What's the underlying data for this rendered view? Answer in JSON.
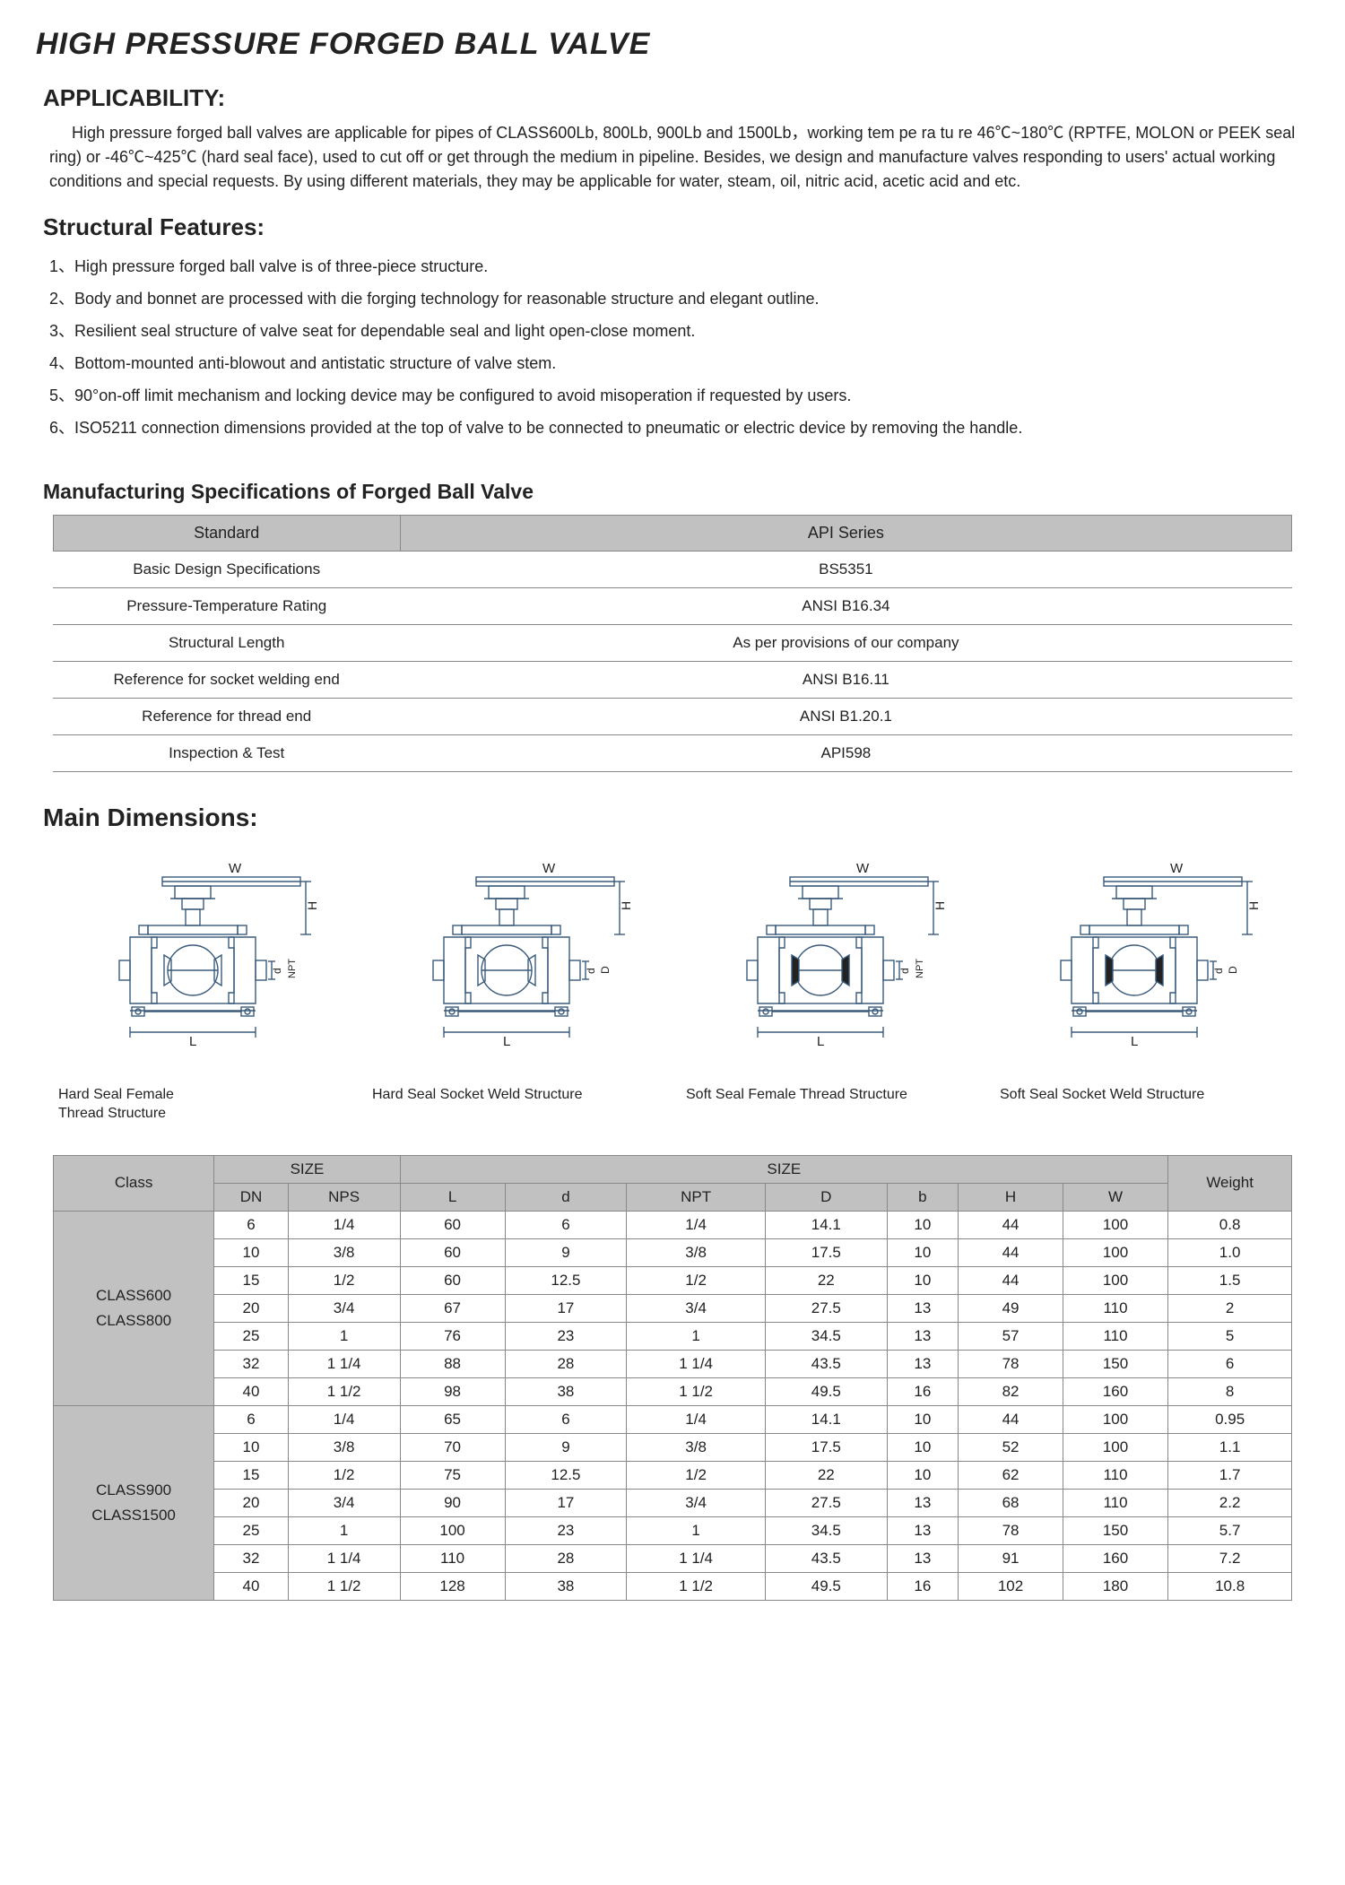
{
  "page_title": "HIGH PRESSURE FORGED BALL VALVE",
  "applicability": {
    "heading": "APPLICABILITY:",
    "text": "High pressure forged ball valves are applicable for pipes of CLASS600Lb, 800Lb, 900Lb and 1500Lb，working tem pe ra tu re 46℃~180℃ (RPTFE, MOLON or PEEK seal ring) or -46℃~425℃ (hard seal face), used to cut off or get through the medium in pipeline. Besides, we design and manufacture valves responding to users' actual working conditions and special requests. By using different materials, they may be applicable for water, steam, oil, nitric acid, acetic acid and etc."
  },
  "features": {
    "heading": "Structural Features:",
    "items": [
      "1、High pressure forged ball valve is of three-piece structure.",
      "2、Body and bonnet are processed with die forging technology for reasonable structure and elegant outline.",
      "3、Resilient seal structure of valve seat for dependable seal and light open-close moment.",
      "4、Bottom-mounted anti-blowout and antistatic structure of valve stem.",
      "5、90°on-off limit mechanism and locking device may be configured to avoid misoperation if requested by users.",
      "6、ISO5211 connection dimensions provided at the top of valve to be connected to pneumatic or electric device by removing the handle."
    ]
  },
  "spec_table": {
    "heading": "Manufacturing Specifications of Forged Ball Valve",
    "header_left": "Standard",
    "header_right": "API Series",
    "rows": [
      [
        "Basic Design Specifications",
        "BS5351"
      ],
      [
        "Pressure-Temperature Rating",
        "ANSI B16.34"
      ],
      [
        "Structural Length",
        "As per provisions of our company"
      ],
      [
        "Reference for socket welding end",
        "ANSI B16.11"
      ],
      [
        "Reference for thread end",
        "ANSI B1.20.1"
      ],
      [
        "Inspection & Test",
        "API598"
      ]
    ]
  },
  "main_dim": {
    "heading": "Main Dimensions:",
    "diagram_labels": {
      "W": "W",
      "H": "H",
      "L": "L",
      "d": "d",
      "D": "D",
      "NPT": "NPT"
    },
    "captions": [
      "Hard Seal Female\nThread Structure",
      "Hard Seal Socket Weld Structure",
      "Soft Seal Female Thread Structure",
      "Soft Seal Socket Weld Structure"
    ]
  },
  "dim_table": {
    "header1": {
      "class": "Class",
      "size1": "SIZE",
      "size2": "SIZE",
      "weight": "Weight"
    },
    "header2": [
      "DN",
      "NPS",
      "L",
      "d",
      "NPT",
      "D",
      "b",
      "H",
      "W"
    ],
    "groups": [
      {
        "class_label": "CLASS600\nCLASS800",
        "rows": [
          [
            "6",
            "1/4",
            "60",
            "6",
            "1/4",
            "14.1",
            "10",
            "44",
            "100",
            "0.8"
          ],
          [
            "10",
            "3/8",
            "60",
            "9",
            "3/8",
            "17.5",
            "10",
            "44",
            "100",
            "1.0"
          ],
          [
            "15",
            "1/2",
            "60",
            "12.5",
            "1/2",
            "22",
            "10",
            "44",
            "100",
            "1.5"
          ],
          [
            "20",
            "3/4",
            "67",
            "17",
            "3/4",
            "27.5",
            "13",
            "49",
            "110",
            "2"
          ],
          [
            "25",
            "1",
            "76",
            "23",
            "1",
            "34.5",
            "13",
            "57",
            "110",
            "5"
          ],
          [
            "32",
            "1 1/4",
            "88",
            "28",
            "1 1/4",
            "43.5",
            "13",
            "78",
            "150",
            "6"
          ],
          [
            "40",
            "1 1/2",
            "98",
            "38",
            "1 1/2",
            "49.5",
            "16",
            "82",
            "160",
            "8"
          ]
        ]
      },
      {
        "class_label": "CLASS900\nCLASS1500",
        "rows": [
          [
            "6",
            "1/4",
            "65",
            "6",
            "1/4",
            "14.1",
            "10",
            "44",
            "100",
            "0.95"
          ],
          [
            "10",
            "3/8",
            "70",
            "9",
            "3/8",
            "17.5",
            "10",
            "52",
            "100",
            "1.1"
          ],
          [
            "15",
            "1/2",
            "75",
            "12.5",
            "1/2",
            "22",
            "10",
            "62",
            "110",
            "1.7"
          ],
          [
            "20",
            "3/4",
            "90",
            "17",
            "3/4",
            "27.5",
            "13",
            "68",
            "110",
            "2.2"
          ],
          [
            "25",
            "1",
            "100",
            "23",
            "1",
            "34.5",
            "13",
            "78",
            "150",
            "5.7"
          ],
          [
            "32",
            "1 1/4",
            "110",
            "28",
            "1 1/4",
            "43.5",
            "13",
            "91",
            "160",
            "7.2"
          ],
          [
            "40",
            "1 1/2",
            "128",
            "38",
            "1 1/2",
            "49.5",
            "16",
            "102",
            "180",
            "10.8"
          ]
        ]
      }
    ]
  },
  "styling": {
    "page_bg": "#ffffff",
    "text_color": "#222222",
    "table_header_bg": "#c1c1c1",
    "table_border": "#888888",
    "diagram_stroke": "#3a5a7a",
    "diagram_stroke_width": 1.4,
    "title_fontsize": 34,
    "section_fontsize": 26,
    "body_fontsize": 18,
    "table_fontsize": 17
  }
}
